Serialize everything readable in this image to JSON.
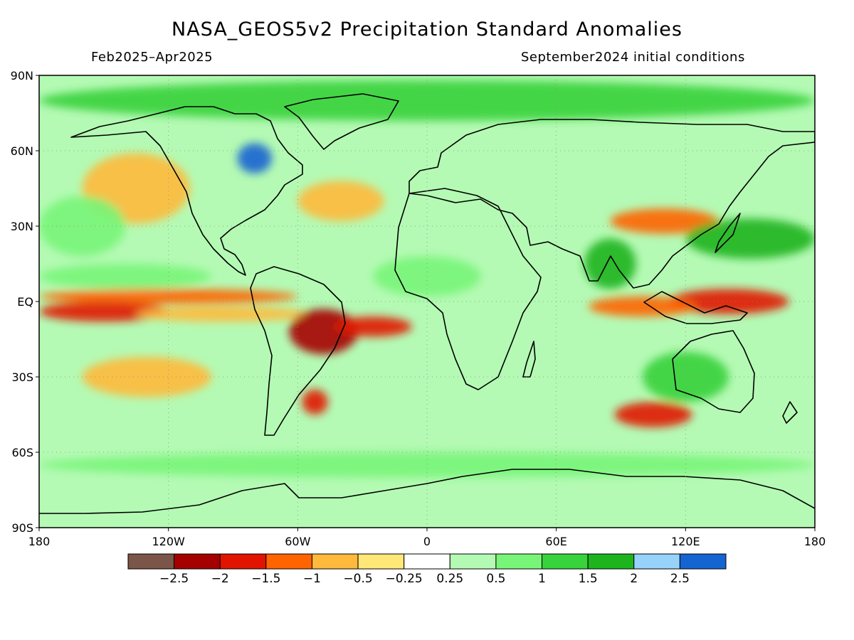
{
  "header": {
    "title": "NASA_GEOS5v2 Precipitation Standard Anomalies",
    "period": "Feb2025–Apr2025",
    "initial_conditions": "September2024 initial conditions"
  },
  "map": {
    "lat_ticks": [
      {
        "value": 90,
        "label": "90N"
      },
      {
        "value": 60,
        "label": "60N"
      },
      {
        "value": 30,
        "label": "30N"
      },
      {
        "value": 0,
        "label": "EQ"
      },
      {
        "value": -30,
        "label": "30S"
      },
      {
        "value": -60,
        "label": "60S"
      },
      {
        "value": -90,
        "label": "90S"
      }
    ],
    "lon_ticks": [
      {
        "value": -180,
        "label": "180"
      },
      {
        "value": -120,
        "label": "120W"
      },
      {
        "value": -60,
        "label": "60W"
      },
      {
        "value": 0,
        "label": "0"
      },
      {
        "value": 60,
        "label": "60E"
      },
      {
        "value": 120,
        "label": "120E"
      },
      {
        "value": 180,
        "label": "180"
      }
    ],
    "anomaly_patches": [
      {
        "lon": -120,
        "lat": 2,
        "rlon": 60,
        "rlat": 3,
        "level": -1
      },
      {
        "lon": -150,
        "lat": -4,
        "rlon": 30,
        "rlat": 4,
        "level": -1.5
      },
      {
        "lon": -95,
        "lat": -5,
        "rlon": 40,
        "rlat": 3,
        "level": -0.5
      },
      {
        "lon": -48,
        "lat": -12,
        "rlon": 16,
        "rlat": 9,
        "level": -2
      },
      {
        "lon": -25,
        "lat": -10,
        "rlon": 18,
        "rlat": 4,
        "level": -1.5
      },
      {
        "lon": 140,
        "lat": 0,
        "rlon": 28,
        "rlat": 5,
        "level": -1.5
      },
      {
        "lon": 100,
        "lat": -2,
        "rlon": 25,
        "rlat": 4,
        "level": -1
      },
      {
        "lon": 105,
        "lat": -45,
        "rlon": 18,
        "rlat": 5,
        "level": -1.5
      },
      {
        "lon": -52,
        "lat": -40,
        "rlon": 6,
        "rlat": 5,
        "level": -1.5
      },
      {
        "lon": -135,
        "lat": 45,
        "rlon": 25,
        "rlat": 14,
        "level": -0.5
      },
      {
        "lon": -40,
        "lat": 40,
        "rlon": 20,
        "rlat": 8,
        "level": -0.5
      },
      {
        "lon": 110,
        "lat": 32,
        "rlon": 25,
        "rlat": 5,
        "level": -1
      },
      {
        "lon": -130,
        "lat": -30,
        "rlon": 30,
        "rlat": 8,
        "level": -0.5
      },
      {
        "lon": 120,
        "lat": -30,
        "rlon": 20,
        "rlat": 10,
        "level": 1
      },
      {
        "lon": 85,
        "lat": 15,
        "rlon": 12,
        "rlat": 10,
        "level": 1.5
      },
      {
        "lon": -160,
        "lat": 30,
        "rlon": 20,
        "rlat": 12,
        "level": 0.5
      },
      {
        "lon": 150,
        "lat": 25,
        "rlon": 30,
        "rlat": 8,
        "level": 1.5
      },
      {
        "lon": 0,
        "lat": 10,
        "rlon": 25,
        "rlat": 8,
        "level": 0.5
      },
      {
        "lon": -140,
        "lat": 10,
        "rlon": 40,
        "rlat": 5,
        "level": 0.5
      },
      {
        "lon": -80,
        "lat": 57,
        "rlon": 8,
        "rlat": 6,
        "level": 2
      },
      {
        "lon": 0,
        "lat": 80,
        "rlon": 180,
        "rlat": 8,
        "level": 1
      },
      {
        "lon": 0,
        "lat": -65,
        "rlon": 180,
        "rlat": 5,
        "level": 0.5
      }
    ]
  },
  "colorbar": {
    "bins": [
      {
        "color": "#7a5548"
      },
      {
        "color": "#a50000"
      },
      {
        "color": "#e11400"
      },
      {
        "color": "#ff6400"
      },
      {
        "color": "#ffb93c"
      },
      {
        "color": "#ffe878"
      },
      {
        "color": "#ffffff"
      },
      {
        "color": "#b4fab4"
      },
      {
        "color": "#78f578"
      },
      {
        "color": "#37d23c"
      },
      {
        "color": "#1eb41e"
      },
      {
        "color": "#96d2fa"
      },
      {
        "color": "#1464d2"
      }
    ],
    "labels": [
      "−2.5",
      "−2",
      "−1.5",
      "−1",
      "−0.5",
      "−0.25",
      "0.25",
      "0.5",
      "1",
      "1.5",
      "2",
      "2.5"
    ]
  }
}
